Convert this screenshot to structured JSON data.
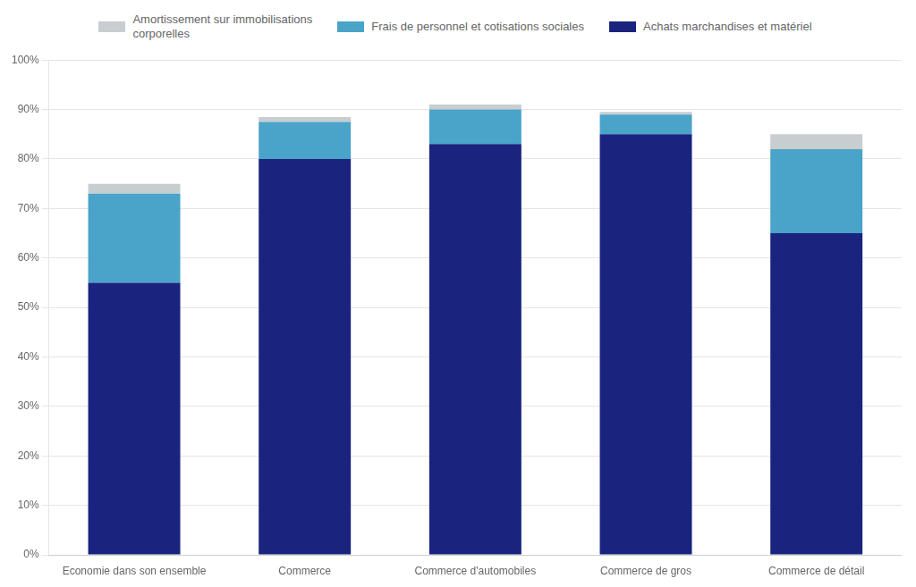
{
  "chart_data": {
    "type": "bar",
    "stacked": true,
    "categories": [
      "Economie dans son ensemble",
      "Commerce",
      "Commerce d'automobiles",
      "Commerce de gros",
      "Commerce de détail"
    ],
    "series": [
      {
        "name": "Achats marchandises et matériel",
        "color": "#1a237e",
        "values": [
          55,
          80,
          83,
          85,
          65
        ]
      },
      {
        "name": "Frais de personnel et cotisations sociales",
        "color": "#4aa3c8",
        "values": [
          18,
          7.5,
          7,
          4,
          17
        ]
      },
      {
        "name": "Amortissement sur immobilisations\ncorporelles",
        "color": "#c8cdd0",
        "values": [
          2,
          1,
          1,
          0.5,
          3
        ]
      }
    ],
    "ylim": [
      0,
      100
    ],
    "yticks": [
      {
        "value": 0,
        "label": "0%"
      },
      {
        "value": 10,
        "label": "10%"
      },
      {
        "value": 20,
        "label": "20%"
      },
      {
        "value": 30,
        "label": "30%"
      },
      {
        "value": 40,
        "label": "40%"
      },
      {
        "value": 50,
        "label": "50%"
      },
      {
        "value": 60,
        "label": "60%"
      },
      {
        "value": 70,
        "label": "70%"
      },
      {
        "value": 80,
        "label": "80%"
      },
      {
        "value": 90,
        "label": "90%"
      },
      {
        "value": 100,
        "label": "100%"
      }
    ],
    "grid": true,
    "legend": "top"
  }
}
